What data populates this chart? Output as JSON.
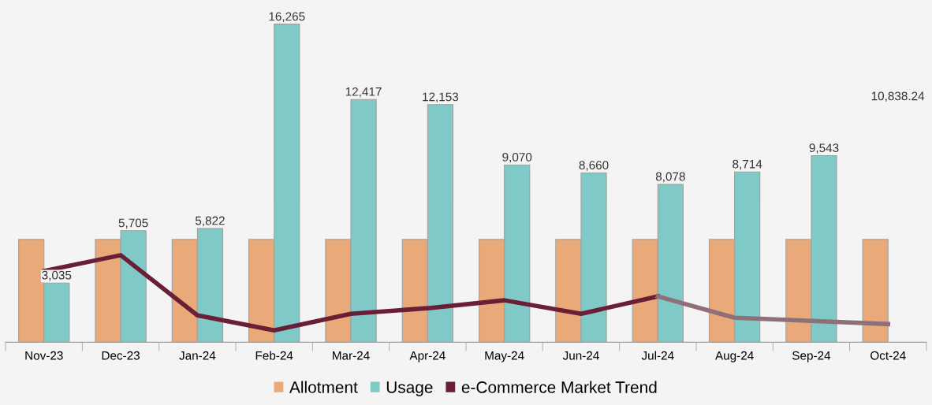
{
  "chart_data": {
    "type": "bar",
    "categories": [
      "Nov-23",
      "Dec-23",
      "Jan-24",
      "Feb-24",
      "Mar-24",
      "Apr-24",
      "May-24",
      "Jun-24",
      "Jul-24",
      "Aug-24",
      "Sep-24",
      "Oct-24"
    ],
    "series": [
      {
        "name": "Allotment",
        "color": "#eaa978",
        "values": [
          5260,
          5260,
          5260,
          5260,
          5260,
          5260,
          5260,
          5260,
          5260,
          5260,
          5260,
          5260
        ]
      },
      {
        "name": "Usage",
        "color": "#7fcac6",
        "values": [
          3035,
          5705,
          5822,
          16265,
          12417,
          12153,
          9070,
          8660,
          8078,
          8714,
          9543,
          null
        ],
        "value_labels": [
          "3,035",
          "5,705",
          "5,822",
          "16,265",
          "12,417",
          "12,153",
          "9,070",
          "8,660",
          "8,078",
          "8,714",
          "9,543",
          null
        ]
      },
      {
        "name": "e-Commerce Market Trend",
        "type": "line",
        "color": "#6a1f36",
        "values": [
          3640,
          4450,
          1375,
          607,
          1457,
          1740,
          2144,
          1457,
          2347,
          null,
          null,
          null
        ]
      },
      {
        "type": "line",
        "color": "#8f7079",
        "values": [
          null,
          null,
          null,
          null,
          null,
          null,
          null,
          null,
          2347,
          1254,
          1092,
          930
        ]
      }
    ],
    "ylim": [
      0,
      17500
    ],
    "tick_labels": "x",
    "annotations": [
      "10,838.24"
    ],
    "legend": "bottom",
    "grid": false
  }
}
